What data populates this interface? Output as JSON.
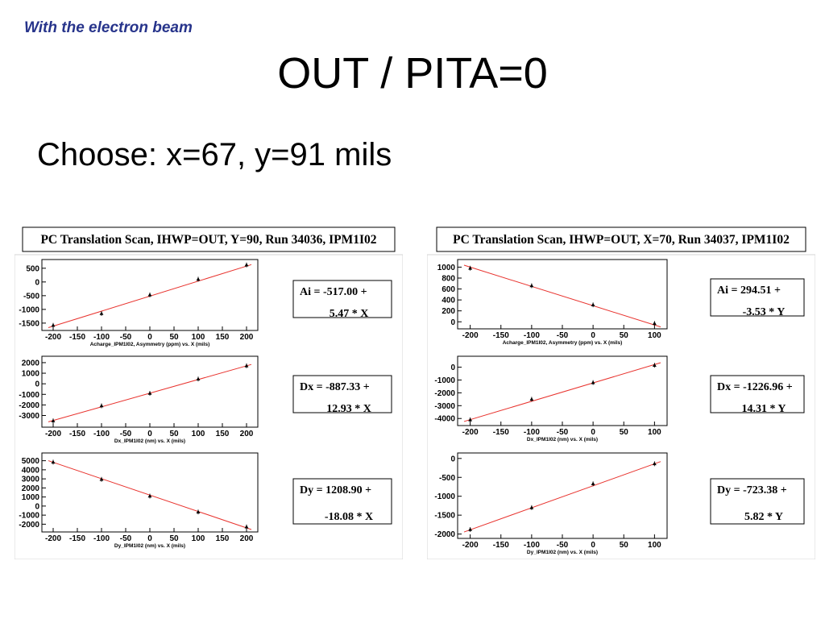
{
  "slide": {
    "subtitle": "With the electron beam",
    "title": "OUT / PITA=0",
    "choose": "Choose: x=67, y=91 mils"
  },
  "colors": {
    "subtitle": "#27348b",
    "fit_line": "#e8322d",
    "marker": "#000000"
  },
  "chart_data": [
    {
      "panel_title": "PC Translation Scan, IHWP=OUT, Y=90, Run 34036, IPM1I02",
      "plots": [
        {
          "type": "scatter",
          "xlabel": "Acharge_IPM1I02, Asymmetry (ppm) vs. X (mils)",
          "x": [
            -200,
            -100,
            0,
            100,
            200
          ],
          "y": [
            -1580,
            -1150,
            -470,
            100,
            620
          ],
          "xlim": [
            -210,
            210
          ],
          "ylim": [
            -1650,
            700
          ],
          "xticks": [
            -200,
            -150,
            -100,
            -50,
            0,
            50,
            100,
            150,
            200
          ],
          "yticks": [
            -1500,
            -1000,
            -500,
            0,
            500
          ],
          "fit": {
            "intercept": -517.0,
            "slope": 5.47,
            "text_line1": "Ai = -517.00 +",
            "text_line2": "5.47 * X"
          }
        },
        {
          "type": "scatter",
          "xlabel": "Dx_IPM1I02 (nm) vs. X (mils)",
          "x": [
            -200,
            -100,
            0,
            100,
            200
          ],
          "y": [
            -3500,
            -2080,
            -900,
            450,
            1700
          ],
          "xlim": [
            -210,
            210
          ],
          "ylim": [
            -3800,
            2300
          ],
          "xticks": [
            -200,
            -150,
            -100,
            -50,
            0,
            50,
            100,
            150,
            200
          ],
          "yticks": [
            -3000,
            -2000,
            -1000,
            0,
            1000,
            2000
          ],
          "fit": {
            "intercept": -887.33,
            "slope": 12.93,
            "text_line1": "Dx = -887.33 +",
            "text_line2": "12.93 * X"
          }
        },
        {
          "type": "scatter",
          "xlabel": "Dy_IPM1I02 (nm) vs. X (mils)",
          "x": [
            -200,
            -100,
            0,
            100,
            200
          ],
          "y": [
            4850,
            2950,
            1100,
            -650,
            -2300
          ],
          "xlim": [
            -210,
            210
          ],
          "ylim": [
            -2500,
            5500
          ],
          "xticks": [
            -200,
            -150,
            -100,
            -50,
            0,
            50,
            100,
            150,
            200
          ],
          "yticks": [
            -2000,
            -1000,
            0,
            1000,
            2000,
            3000,
            4000,
            5000
          ],
          "fit": {
            "intercept": 1208.9,
            "slope": -18.08,
            "text_line1": "Dy = 1208.90 +",
            "text_line2": "-18.08 * X"
          }
        }
      ]
    },
    {
      "panel_title": "PC Translation Scan, IHWP=OUT, X=70, Run 34037, IPM1I02",
      "plots": [
        {
          "type": "scatter",
          "xlabel": "Acharge_IPM1I02, Asymmetry (ppm) vs. X (mils)",
          "x": [
            -200,
            -100,
            0,
            100
          ],
          "y": [
            980,
            660,
            310,
            -30
          ],
          "xlim": [
            -210,
            110
          ],
          "ylim": [
            -70,
            1080
          ],
          "xticks": [
            -200,
            -150,
            -100,
            -50,
            0,
            50,
            100
          ],
          "yticks": [
            0,
            200,
            400,
            600,
            800,
            1000
          ],
          "fit": {
            "intercept": 294.51,
            "slope": -3.53,
            "text_line1": "Ai = 294.51 +",
            "text_line2": "-3.53 * Y"
          }
        },
        {
          "type": "scatter",
          "xlabel": "Dx_IPM1I02 (nm) vs. X (mils)",
          "x": [
            -200,
            -100,
            0,
            100
          ],
          "y": [
            -4100,
            -2500,
            -1200,
            150
          ],
          "xlim": [
            -210,
            110
          ],
          "ylim": [
            -4300,
            600
          ],
          "xticks": [
            -200,
            -150,
            -100,
            -50,
            0,
            50,
            100
          ],
          "yticks": [
            -4000,
            -3000,
            -2000,
            -1000,
            0
          ],
          "fit": {
            "intercept": -1226.96,
            "slope": 14.31,
            "text_line1": "Dx = -1226.96 +",
            "text_line2": "14.31 * Y"
          }
        },
        {
          "type": "scatter",
          "xlabel": "Dy_IPM1I02 (nm) vs. X (mils)",
          "x": [
            -200,
            -100,
            0,
            100
          ],
          "y": [
            -1880,
            -1300,
            -670,
            -140
          ],
          "xlim": [
            -210,
            110
          ],
          "ylim": [
            -2030,
            60
          ],
          "xticks": [
            -200,
            -150,
            -100,
            -50,
            0,
            50,
            100
          ],
          "yticks": [
            -2000,
            -1500,
            -1000,
            -500,
            0
          ],
          "fit": {
            "intercept": -723.38,
            "slope": 5.82,
            "text_line1": "Dy = -723.38 +",
            "text_line2": "5.82 * Y"
          }
        }
      ]
    }
  ]
}
